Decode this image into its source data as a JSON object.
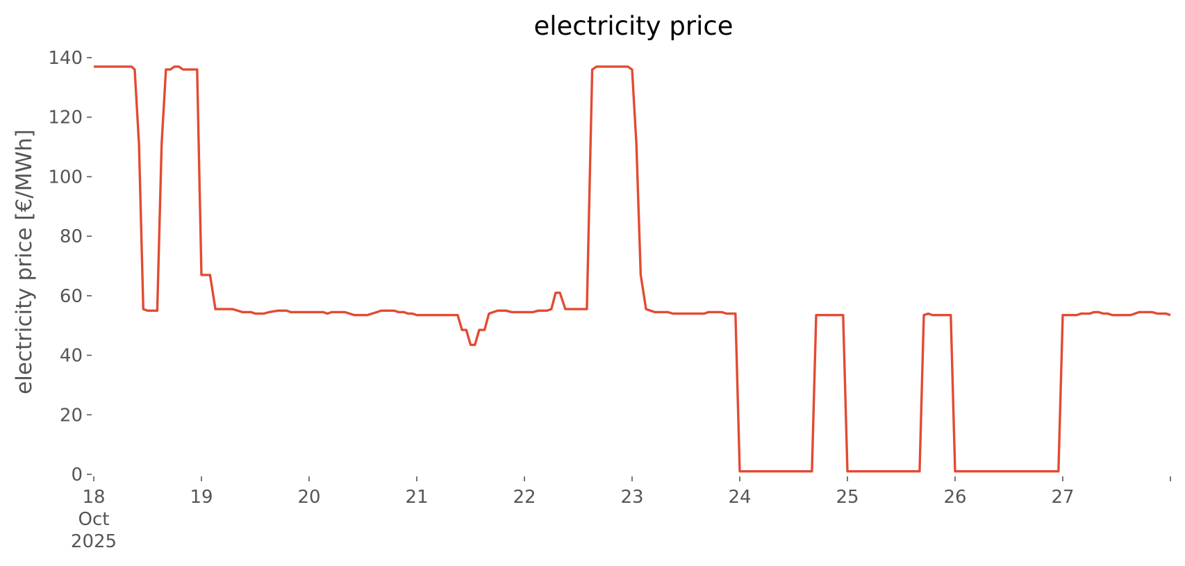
{
  "chart_data": {
    "type": "line",
    "title": "electricity price",
    "xlabel": "",
    "ylabel": "electricity price [€/MWh]",
    "grid": false,
    "legend": "none",
    "xlim": [
      0,
      10
    ],
    "ylim": [
      0,
      140
    ],
    "y_ticks": [
      0,
      20,
      40,
      60,
      80,
      100,
      120,
      140
    ],
    "y_tick_labels": [
      "0",
      "20",
      "40",
      "60",
      "80",
      "100",
      "120",
      "140"
    ],
    "x_ticks": [
      0,
      1,
      2,
      3,
      4,
      5,
      6,
      7,
      8,
      9,
      10
    ],
    "x_tick_labels": [
      [
        "18",
        "Oct",
        "2025"
      ],
      [
        "19"
      ],
      [
        "20"
      ],
      [
        "21"
      ],
      [
        "22"
      ],
      [
        "23"
      ],
      [
        "24"
      ],
      [
        "25"
      ],
      [
        "26"
      ],
      [
        "27"
      ],
      [
        ""
      ]
    ],
    "series": [
      {
        "color": "#E24A33",
        "points": [
          [
            0.0,
            137
          ],
          [
            0.35,
            137
          ],
          [
            0.38,
            136
          ],
          [
            0.42,
            111
          ],
          [
            0.46,
            55.5
          ],
          [
            0.5,
            55
          ],
          [
            0.59,
            55
          ],
          [
            0.63,
            111
          ],
          [
            0.67,
            136
          ],
          [
            0.71,
            136
          ],
          [
            0.75,
            137
          ],
          [
            0.79,
            137
          ],
          [
            0.83,
            136
          ],
          [
            0.96,
            136
          ],
          [
            1.0,
            67
          ],
          [
            1.08,
            67
          ],
          [
            1.13,
            55.5
          ],
          [
            1.29,
            55.5
          ],
          [
            1.38,
            54.5
          ],
          [
            1.46,
            54.5
          ],
          [
            1.5,
            54
          ],
          [
            1.58,
            54
          ],
          [
            1.63,
            54.5
          ],
          [
            1.71,
            55
          ],
          [
            1.79,
            55
          ],
          [
            1.83,
            54.5
          ],
          [
            2.13,
            54.5
          ],
          [
            2.17,
            54
          ],
          [
            2.21,
            54.5
          ],
          [
            2.33,
            54.5
          ],
          [
            2.42,
            53.5
          ],
          [
            2.54,
            53.5
          ],
          [
            2.63,
            54.5
          ],
          [
            2.67,
            55
          ],
          [
            2.79,
            55
          ],
          [
            2.83,
            54.5
          ],
          [
            2.88,
            54.5
          ],
          [
            2.92,
            54
          ],
          [
            2.96,
            54
          ],
          [
            3.0,
            53.5
          ],
          [
            3.38,
            53.5
          ],
          [
            3.42,
            48.5
          ],
          [
            3.46,
            48.5
          ],
          [
            3.5,
            43.5
          ],
          [
            3.54,
            43.5
          ],
          [
            3.58,
            48.5
          ],
          [
            3.63,
            48.5
          ],
          [
            3.67,
            54
          ],
          [
            3.75,
            55
          ],
          [
            3.83,
            55
          ],
          [
            3.88,
            54.5
          ],
          [
            4.08,
            54.5
          ],
          [
            4.13,
            55
          ],
          [
            4.21,
            55
          ],
          [
            4.25,
            55.5
          ],
          [
            4.29,
            61
          ],
          [
            4.33,
            61
          ],
          [
            4.38,
            55.5
          ],
          [
            4.58,
            55.5
          ],
          [
            4.63,
            136
          ],
          [
            4.67,
            137
          ],
          [
            4.96,
            137
          ],
          [
            5.0,
            136
          ],
          [
            5.04,
            111
          ],
          [
            5.08,
            67
          ],
          [
            5.13,
            55.5
          ],
          [
            5.21,
            54.5
          ],
          [
            5.33,
            54.5
          ],
          [
            5.38,
            54
          ],
          [
            5.67,
            54
          ],
          [
            5.71,
            54.5
          ],
          [
            5.83,
            54.5
          ],
          [
            5.88,
            54
          ],
          [
            5.96,
            54
          ],
          [
            6.0,
            1
          ],
          [
            6.67,
            1
          ],
          [
            6.71,
            53.5
          ],
          [
            6.96,
            53.5
          ],
          [
            7.0,
            1
          ],
          [
            7.67,
            1
          ],
          [
            7.71,
            53.5
          ],
          [
            7.75,
            54
          ],
          [
            7.79,
            53.5
          ],
          [
            7.96,
            53.5
          ],
          [
            8.0,
            1
          ],
          [
            8.67,
            1
          ],
          [
            8.71,
            1
          ],
          [
            8.96,
            1
          ],
          [
            9.0,
            53.5
          ],
          [
            9.13,
            53.5
          ],
          [
            9.17,
            54
          ],
          [
            9.25,
            54
          ],
          [
            9.29,
            54.5
          ],
          [
            9.33,
            54.5
          ],
          [
            9.38,
            54
          ],
          [
            9.42,
            54
          ],
          [
            9.46,
            53.5
          ],
          [
            9.63,
            53.5
          ],
          [
            9.67,
            54
          ],
          [
            9.71,
            54.5
          ],
          [
            9.83,
            54.5
          ],
          [
            9.88,
            54
          ],
          [
            9.96,
            54
          ],
          [
            10.0,
            53.5
          ]
        ]
      }
    ]
  }
}
